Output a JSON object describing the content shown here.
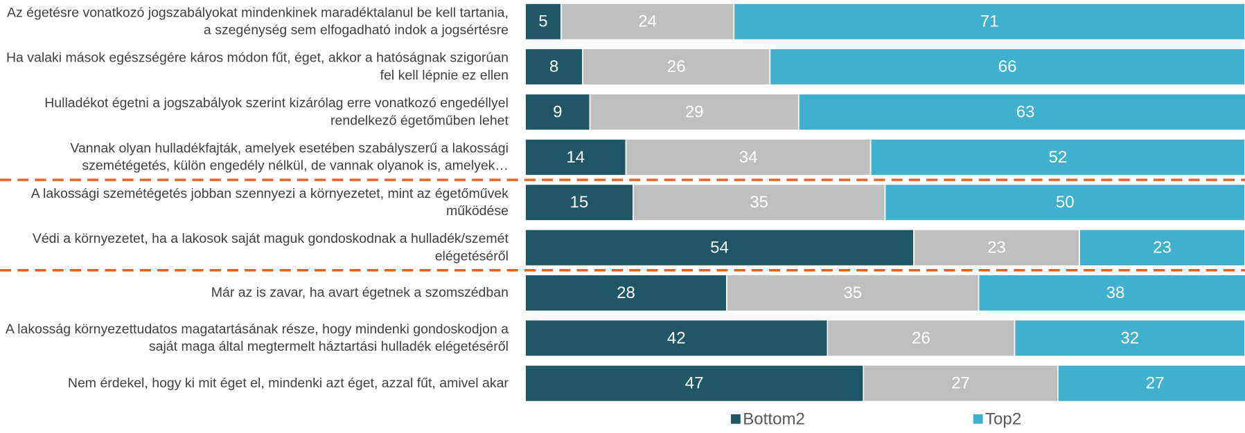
{
  "chart_data": {
    "type": "stacked_bar_horizontal",
    "categories": [
      "Az égetésre vonatkozó jogszabályokat mindenkinek maradéktalanul be kell tartania, a szegénység sem elfogadható indok a jogsértésre",
      "Ha valaki mások egészségére káros módon fűt, éget, akkor a hatóságnak szigorúan fel kell lépnie ez ellen",
      "Hulladékot égetni a jogszabályok szerint kizárólag erre vonatkozó engedéllyel rendelkező égetőműben lehet",
      "Vannak olyan hulladékfajták, amelyek esetében szabályszerű a lakossági szemétégetés, külön engedély nélkül, de vannak olyanok is, amelyek…",
      "A lakossági szemétégetés jobban szennyezi a környezetet, mint az égetőművek működése",
      "Védi a környezetet, ha a lakosok saját maguk gondoskodnak a hulladék/szemét elégetéséről",
      "Már az is zavar, ha avart égetnek a szomszédban",
      "A lakosság környezettudatos magatartásának része, hogy mindenki gondoskodjon a saját maga által megtermelt háztartási hulladék elégetéséről",
      "Nem érdekel, hogy ki mit éget el, mindenki azt éget, azzal fűt, amivel akar"
    ],
    "series": [
      {
        "name": "Bottom2",
        "color": "#1f5766",
        "values": [
          5,
          8,
          9,
          14,
          15,
          54,
          28,
          42,
          47
        ]
      },
      {
        "color": "#bfbfbf",
        "values": [
          24,
          26,
          29,
          34,
          35,
          23,
          35,
          26,
          27
        ]
      },
      {
        "name": "Top2",
        "color": "#3fb0cd",
        "values": [
          71,
          66,
          63,
          52,
          50,
          23,
          38,
          32,
          27
        ]
      }
    ],
    "xlim": [
      0,
      100
    ]
  }
}
